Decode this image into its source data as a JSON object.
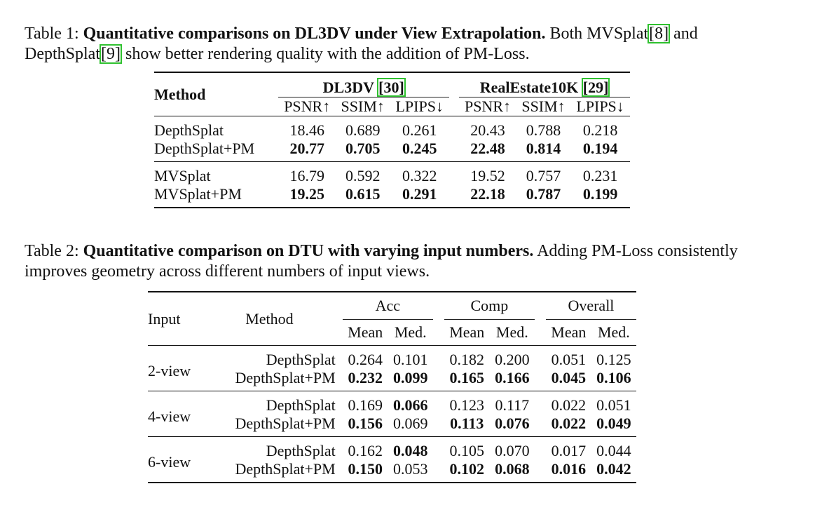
{
  "table1": {
    "caption_prefix": "Table 1:",
    "caption_title": "Quantitative comparisons on DL3DV under View Extrapolation.",
    "caption_text_a": "Both MVSplat",
    "cite_a": "8",
    "caption_text_b": "and DepthSplat",
    "cite_b": "9",
    "caption_text_c": "show better rendering quality with the addition of PM-Loss.",
    "method_header": "Method",
    "group1": "DL3DV",
    "group1_cite": "30",
    "group2": "RealEstate10K",
    "group2_cite": "29",
    "metrics": [
      "PSNR↑",
      "SSIM↑",
      "LPIPS↓",
      "PSNR↑",
      "SSIM↑",
      "LPIPS↓"
    ],
    "rows": [
      {
        "method": "DepthSplat",
        "values": [
          "18.46",
          "0.689",
          "0.261",
          "20.43",
          "0.788",
          "0.218"
        ],
        "bold": false
      },
      {
        "method": "DepthSplat+PM",
        "values": [
          "20.77",
          "0.705",
          "0.245",
          "22.48",
          "0.814",
          "0.194"
        ],
        "bold": true
      },
      {
        "method": "MVSplat",
        "values": [
          "16.79",
          "0.592",
          "0.322",
          "19.52",
          "0.757",
          "0.231"
        ],
        "bold": false
      },
      {
        "method": "MVSplat+PM",
        "values": [
          "19.25",
          "0.615",
          "0.291",
          "22.18",
          "0.787",
          "0.199"
        ],
        "bold": true
      }
    ]
  },
  "table2": {
    "caption_prefix": "Table 2:",
    "caption_title": "Quantitative comparison on DTU with varying input numbers.",
    "caption_text": "Adding PM-Loss consistently improves geometry across different numbers of input views.",
    "input_header": "Input",
    "method_header": "Method",
    "groups": [
      "Acc",
      "Comp",
      "Overall"
    ],
    "subheaders": [
      "Mean",
      "Med.",
      "Mean",
      "Med.",
      "Mean",
      "Med."
    ],
    "blocks": [
      {
        "input": "2-view",
        "rows": [
          {
            "method": "DepthSplat",
            "values": [
              "0.264",
              "0.101",
              "0.182",
              "0.200",
              "0.051",
              "0.125"
            ],
            "bold": [
              false,
              false,
              false,
              false,
              false,
              false
            ]
          },
          {
            "method": "DepthSplat+PM",
            "values": [
              "0.232",
              "0.099",
              "0.165",
              "0.166",
              "0.045",
              "0.106"
            ],
            "bold": [
              true,
              true,
              true,
              true,
              true,
              true
            ]
          }
        ]
      },
      {
        "input": "4-view",
        "rows": [
          {
            "method": "DepthSplat",
            "values": [
              "0.169",
              "0.066",
              "0.123",
              "0.117",
              "0.022",
              "0.051"
            ],
            "bold": [
              false,
              true,
              false,
              false,
              false,
              false
            ]
          },
          {
            "method": "DepthSplat+PM",
            "values": [
              "0.156",
              "0.069",
              "0.113",
              "0.076",
              "0.022",
              "0.049"
            ],
            "bold": [
              true,
              false,
              true,
              true,
              true,
              true
            ]
          }
        ]
      },
      {
        "input": "6-view",
        "rows": [
          {
            "method": "DepthSplat",
            "values": [
              "0.162",
              "0.048",
              "0.105",
              "0.070",
              "0.017",
              "0.044"
            ],
            "bold": [
              false,
              true,
              false,
              false,
              false,
              false
            ]
          },
          {
            "method": "DepthSplat+PM",
            "values": [
              "0.150",
              "0.053",
              "0.102",
              "0.068",
              "0.016",
              "0.042"
            ],
            "bold": [
              true,
              false,
              true,
              true,
              true,
              true
            ]
          }
        ]
      }
    ]
  }
}
